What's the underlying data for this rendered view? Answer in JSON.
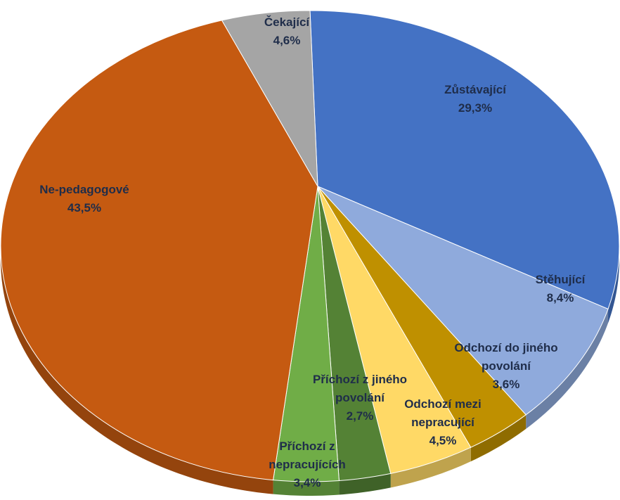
{
  "chart_data": {
    "type": "pie",
    "categories": [
      "Zůstávající",
      "Stěhující",
      "Odchozí do jiného povolání",
      "Odchozí mezi nepracující",
      "Příchozí z jiného povolání",
      "Příchozí z nepracujících",
      "Ne-pedagogové",
      "Čekající"
    ],
    "values": [
      29.3,
      8.4,
      3.6,
      4.5,
      2.7,
      3.4,
      43.5,
      4.6
    ],
    "value_labels": [
      "29,3%",
      "8,4%",
      "3,6%",
      "4,5%",
      "2,7%",
      "3,4%",
      "43,5%",
      "4,6%"
    ],
    "colors": [
      "#4472c4",
      "#8faadc",
      "#bf9000",
      "#ffd966",
      "#548235",
      "#70ad47",
      "#c55a11",
      "#a5a5a5"
    ]
  }
}
